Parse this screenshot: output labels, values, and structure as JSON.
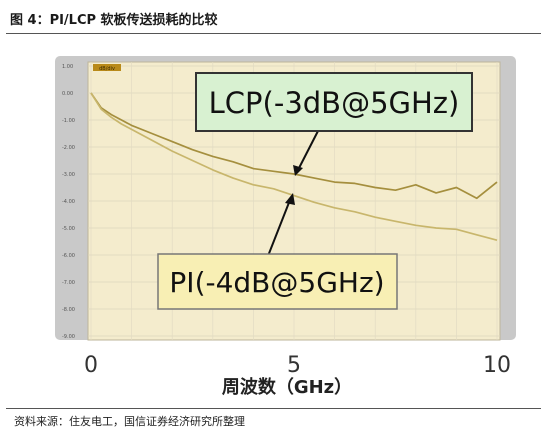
{
  "figure_title": "图 4：PI/LCP 软板传送损耗的比较",
  "source_note": "资料来源：住友电工，国信证券经济研究所整理",
  "chart_data": {
    "type": "line",
    "xlabel": "周波数（GHz）",
    "x_ticks": [
      "0",
      "5",
      "10"
    ],
    "xlim": [
      0,
      10
    ],
    "y_ticks": [
      "1.00",
      "0.00",
      "-1.00",
      "-2.00",
      "-3.00",
      "-4.00",
      "-5.00",
      "-6.00",
      "-7.00",
      "-8.00",
      "-9.00"
    ],
    "ylim": [
      -9,
      1
    ],
    "grid": true,
    "series": [
      {
        "name": "LCP(-3dB@5GHz)",
        "x": [
          0,
          0.25,
          0.5,
          0.75,
          1,
          1.5,
          2,
          2.5,
          3,
          3.5,
          4,
          4.5,
          5,
          5.5,
          6,
          6.5,
          7,
          7.5,
          8,
          8.5,
          9,
          9.5,
          10
        ],
        "y": [
          0,
          -0.55,
          -0.8,
          -1.0,
          -1.2,
          -1.5,
          -1.8,
          -2.1,
          -2.35,
          -2.55,
          -2.8,
          -2.9,
          -3.0,
          -3.15,
          -3.3,
          -3.35,
          -3.5,
          -3.6,
          -3.4,
          -3.7,
          -3.5,
          -3.9,
          -3.3
        ]
      },
      {
        "name": "PI(-4dB@5GHz)",
        "x": [
          0,
          0.25,
          0.5,
          0.75,
          1,
          1.5,
          2,
          2.5,
          3,
          3.5,
          4,
          4.5,
          5,
          5.5,
          6,
          6.5,
          7,
          7.5,
          8,
          8.5,
          9,
          9.5,
          10
        ],
        "y": [
          0,
          -0.6,
          -0.9,
          -1.15,
          -1.35,
          -1.75,
          -2.15,
          -2.5,
          -2.85,
          -3.15,
          -3.4,
          -3.55,
          -3.8,
          -4.05,
          -4.25,
          -4.4,
          -4.6,
          -4.75,
          -4.9,
          -5.0,
          -5.05,
          -5.25,
          -5.45
        ]
      }
    ],
    "annotations": [
      "LCP(-3dB@5GHz)",
      "PI(-4dB@5GHz)"
    ],
    "legend_tag": "dB/div",
    "colors": {
      "plot_bg": "#f4eccd",
      "plot_frame": "#c9c9c9",
      "lcp_line": "#a58f3e",
      "pi_line": "#c8b66c",
      "lcp_box_fill": "#d8f1d1",
      "lcp_box_stroke": "#333333",
      "pi_box_fill": "#f8efb4",
      "pi_box_stroke": "#777777",
      "tag_fill": "#b98a19"
    }
  }
}
